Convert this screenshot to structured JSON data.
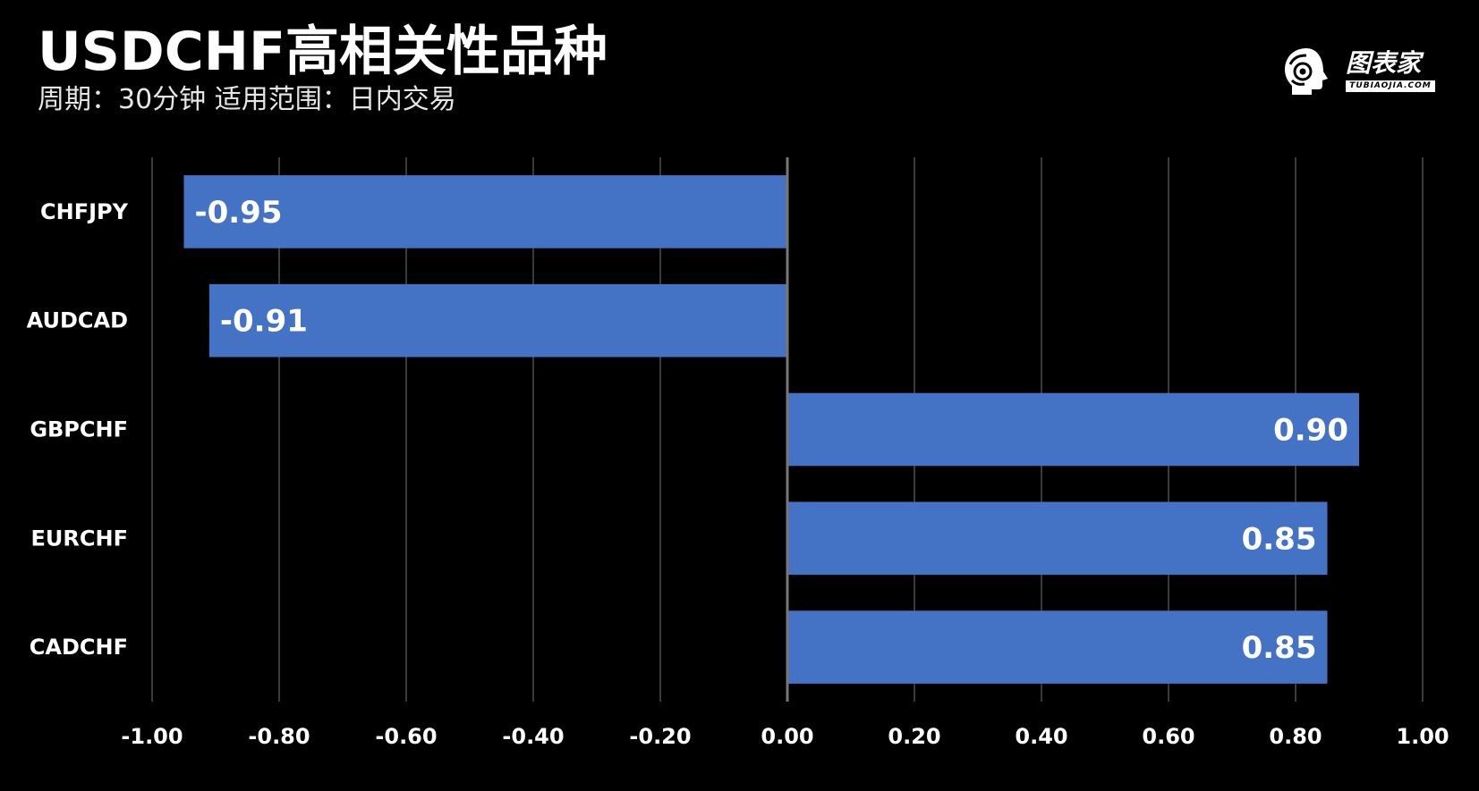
{
  "header": {
    "title": "USDCHF高相关性品种",
    "subtitle": "周期：30分钟  适用范围：日内交易"
  },
  "logo": {
    "icon": "head-profile-logo-icon",
    "text": "图表家",
    "subtext": "TUBIAOJIA.COM"
  },
  "colors": {
    "background": "#000000",
    "bar": "#4472c4",
    "gridline": "#3a3a3a",
    "zero_line": "#777777",
    "text": "#ffffff"
  },
  "chart_data": {
    "type": "bar",
    "orientation": "horizontal",
    "categories": [
      "CHFJPY",
      "AUDCAD",
      "GBPCHF",
      "EURCHF",
      "CADCHF"
    ],
    "values": [
      -0.95,
      -0.91,
      0.9,
      0.85,
      0.85
    ],
    "value_labels": [
      "-0.95",
      "-0.91",
      "0.90",
      "0.85",
      "0.85"
    ],
    "xlim": [
      -1.0,
      1.0
    ],
    "xticks": [
      -1.0,
      -0.8,
      -0.6,
      -0.4,
      -0.2,
      0.0,
      0.2,
      0.4,
      0.6,
      0.8,
      1.0
    ],
    "xtick_labels": [
      "-1.00",
      "-0.80",
      "-0.60",
      "-0.40",
      "-0.20",
      "0.00",
      "0.20",
      "0.40",
      "0.60",
      "0.80",
      "1.00"
    ],
    "grid": true,
    "legend": "none",
    "title": "USDCHF高相关性品种"
  }
}
